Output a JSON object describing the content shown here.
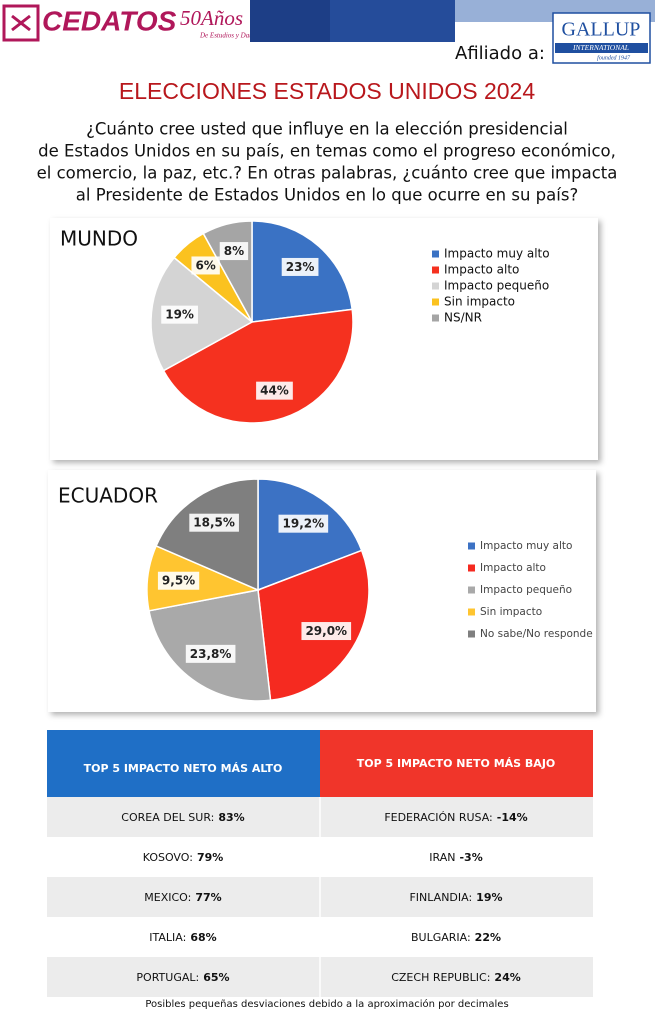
{
  "header": {
    "brand": "CEDATOS",
    "anniversary": "50Años",
    "tagline": "De Estudios y Datos",
    "affiliate": "Afiliado a:",
    "partner": "GALLUP",
    "partner_sub": "INTERNATIONAL",
    "partner_founded": "founded 1947"
  },
  "title": "ELECCIONES ESTADOS UNIDOS 2024",
  "question": [
    "¿Cuánto cree usted que influye en la elección presidencial",
    "de Estados Unidos en su país, en temas como el progreso económico,",
    "el comercio, la paz, etc.? En otras palabras, ¿cuánto cree que impacta",
    "al Presidente de Estados Unidos en lo que ocurre en su país?"
  ],
  "chart_data": [
    {
      "type": "pie",
      "title": "MUNDO",
      "categories": [
        "Impacto muy alto",
        "Impacto alto",
        "Impacto pequeño",
        "Sin impacto",
        "NS/NR"
      ],
      "values": [
        23,
        44,
        19,
        6,
        8
      ],
      "value_labels": [
        "23%",
        "44%",
        "19%",
        "6%",
        "8%"
      ],
      "colors": [
        "#3a72c4",
        "#f5311f",
        "#d4d4d4",
        "#fbc21f",
        "#a5a5a5"
      ],
      "legend": "right"
    },
    {
      "type": "pie",
      "title": "ECUADOR",
      "categories": [
        "Impacto muy alto",
        "Impacto alto",
        "Impacto pequeño",
        "Sin impacto",
        "No sabe/No responde"
      ],
      "values": [
        19.2,
        29.0,
        23.8,
        9.5,
        18.5
      ],
      "value_labels": [
        "19,2%",
        "29,0%",
        "23,8%",
        "9,5%",
        "18,5%"
      ],
      "colors": [
        "#3c72c4",
        "#f52a20",
        "#a9a9a9",
        "#ffc530",
        "#7f7f7f"
      ],
      "legend": "right"
    }
  ],
  "table": {
    "headers": [
      "TOP 5 IMPACTO NETO MÁS ALTO",
      "TOP 5 IMPACTO NETO MÁS BAJO"
    ],
    "rows": [
      [
        {
          "label": "COREA DEL SUR:",
          "value": "83%"
        },
        {
          "label": "FEDERACIÓN RUSA:",
          "value": "-14%"
        }
      ],
      [
        {
          "label": "KOSOVO:",
          "value": "79%"
        },
        {
          "label": "IRAN",
          "value": "-3%"
        }
      ],
      [
        {
          "label": "MEXICO:",
          "value": "77%"
        },
        {
          "label": "FINLANDIA:",
          "value": "19%"
        }
      ],
      [
        {
          "label": "ITALIA:",
          "value": "68%"
        },
        {
          "label": "BULGARIA:",
          "value": "22%"
        }
      ],
      [
        {
          "label": "PORTUGAL:",
          "value": "65%"
        },
        {
          "label": "CZECH REPUBLIC:",
          "value": "24%"
        }
      ]
    ]
  },
  "footnote": "Posibles pequeñas desviaciones debido a la aproximación por decimales"
}
